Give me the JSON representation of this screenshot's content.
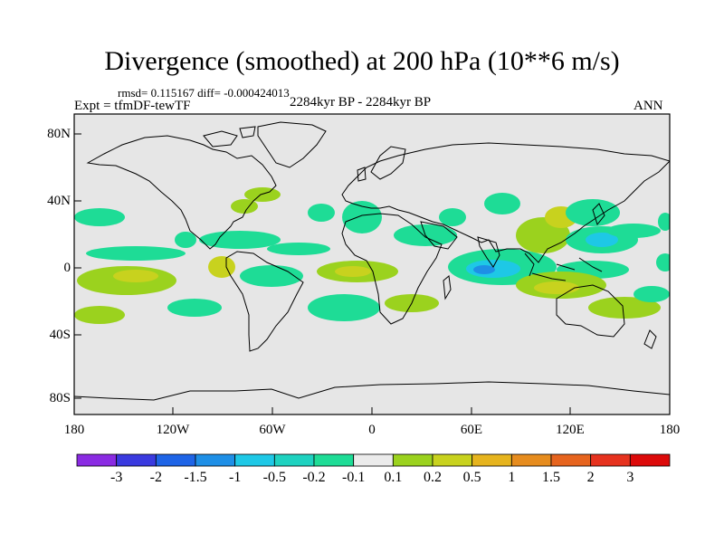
{
  "title": "Divergence (smoothed) at 200 hPa (10**6 m/s)",
  "stats": "rmsd= 0.115167 diff= -0.000424013",
  "experiment": "Expt = tfmDF-tewTF",
  "period": "2284kyr BP - 2284kyr BP",
  "season": "ANN",
  "lat_labels": [
    "80N",
    "40N",
    "0",
    "40S",
    "80S"
  ],
  "lon_labels": [
    "180",
    "120W",
    "60W",
    "0",
    "60E",
    "120E",
    "180"
  ],
  "colorbar": {
    "labels": [
      "-3",
      "-2",
      "-1.5",
      "-1",
      "-0.5",
      "-0.2",
      "-0.1",
      "0.1",
      "0.2",
      "0.5",
      "1",
      "1.5",
      "2",
      "3"
    ],
    "colors": [
      "#8a2be2",
      "#3a3adf",
      "#1e64e6",
      "#1e8fe6",
      "#1ec8e6",
      "#1ed2c0",
      "#1edc96",
      "#ebebeb",
      "#9bd21e",
      "#c8d21e",
      "#e6b41e",
      "#e68c1e",
      "#e6641e",
      "#e6321e",
      "#dc0a0a"
    ]
  },
  "map": {
    "background": "#e6e6e6",
    "projection": "cylindrical equidistant",
    "lon_range": [
      -180,
      180
    ],
    "lat_range": [
      -90,
      90
    ]
  }
}
